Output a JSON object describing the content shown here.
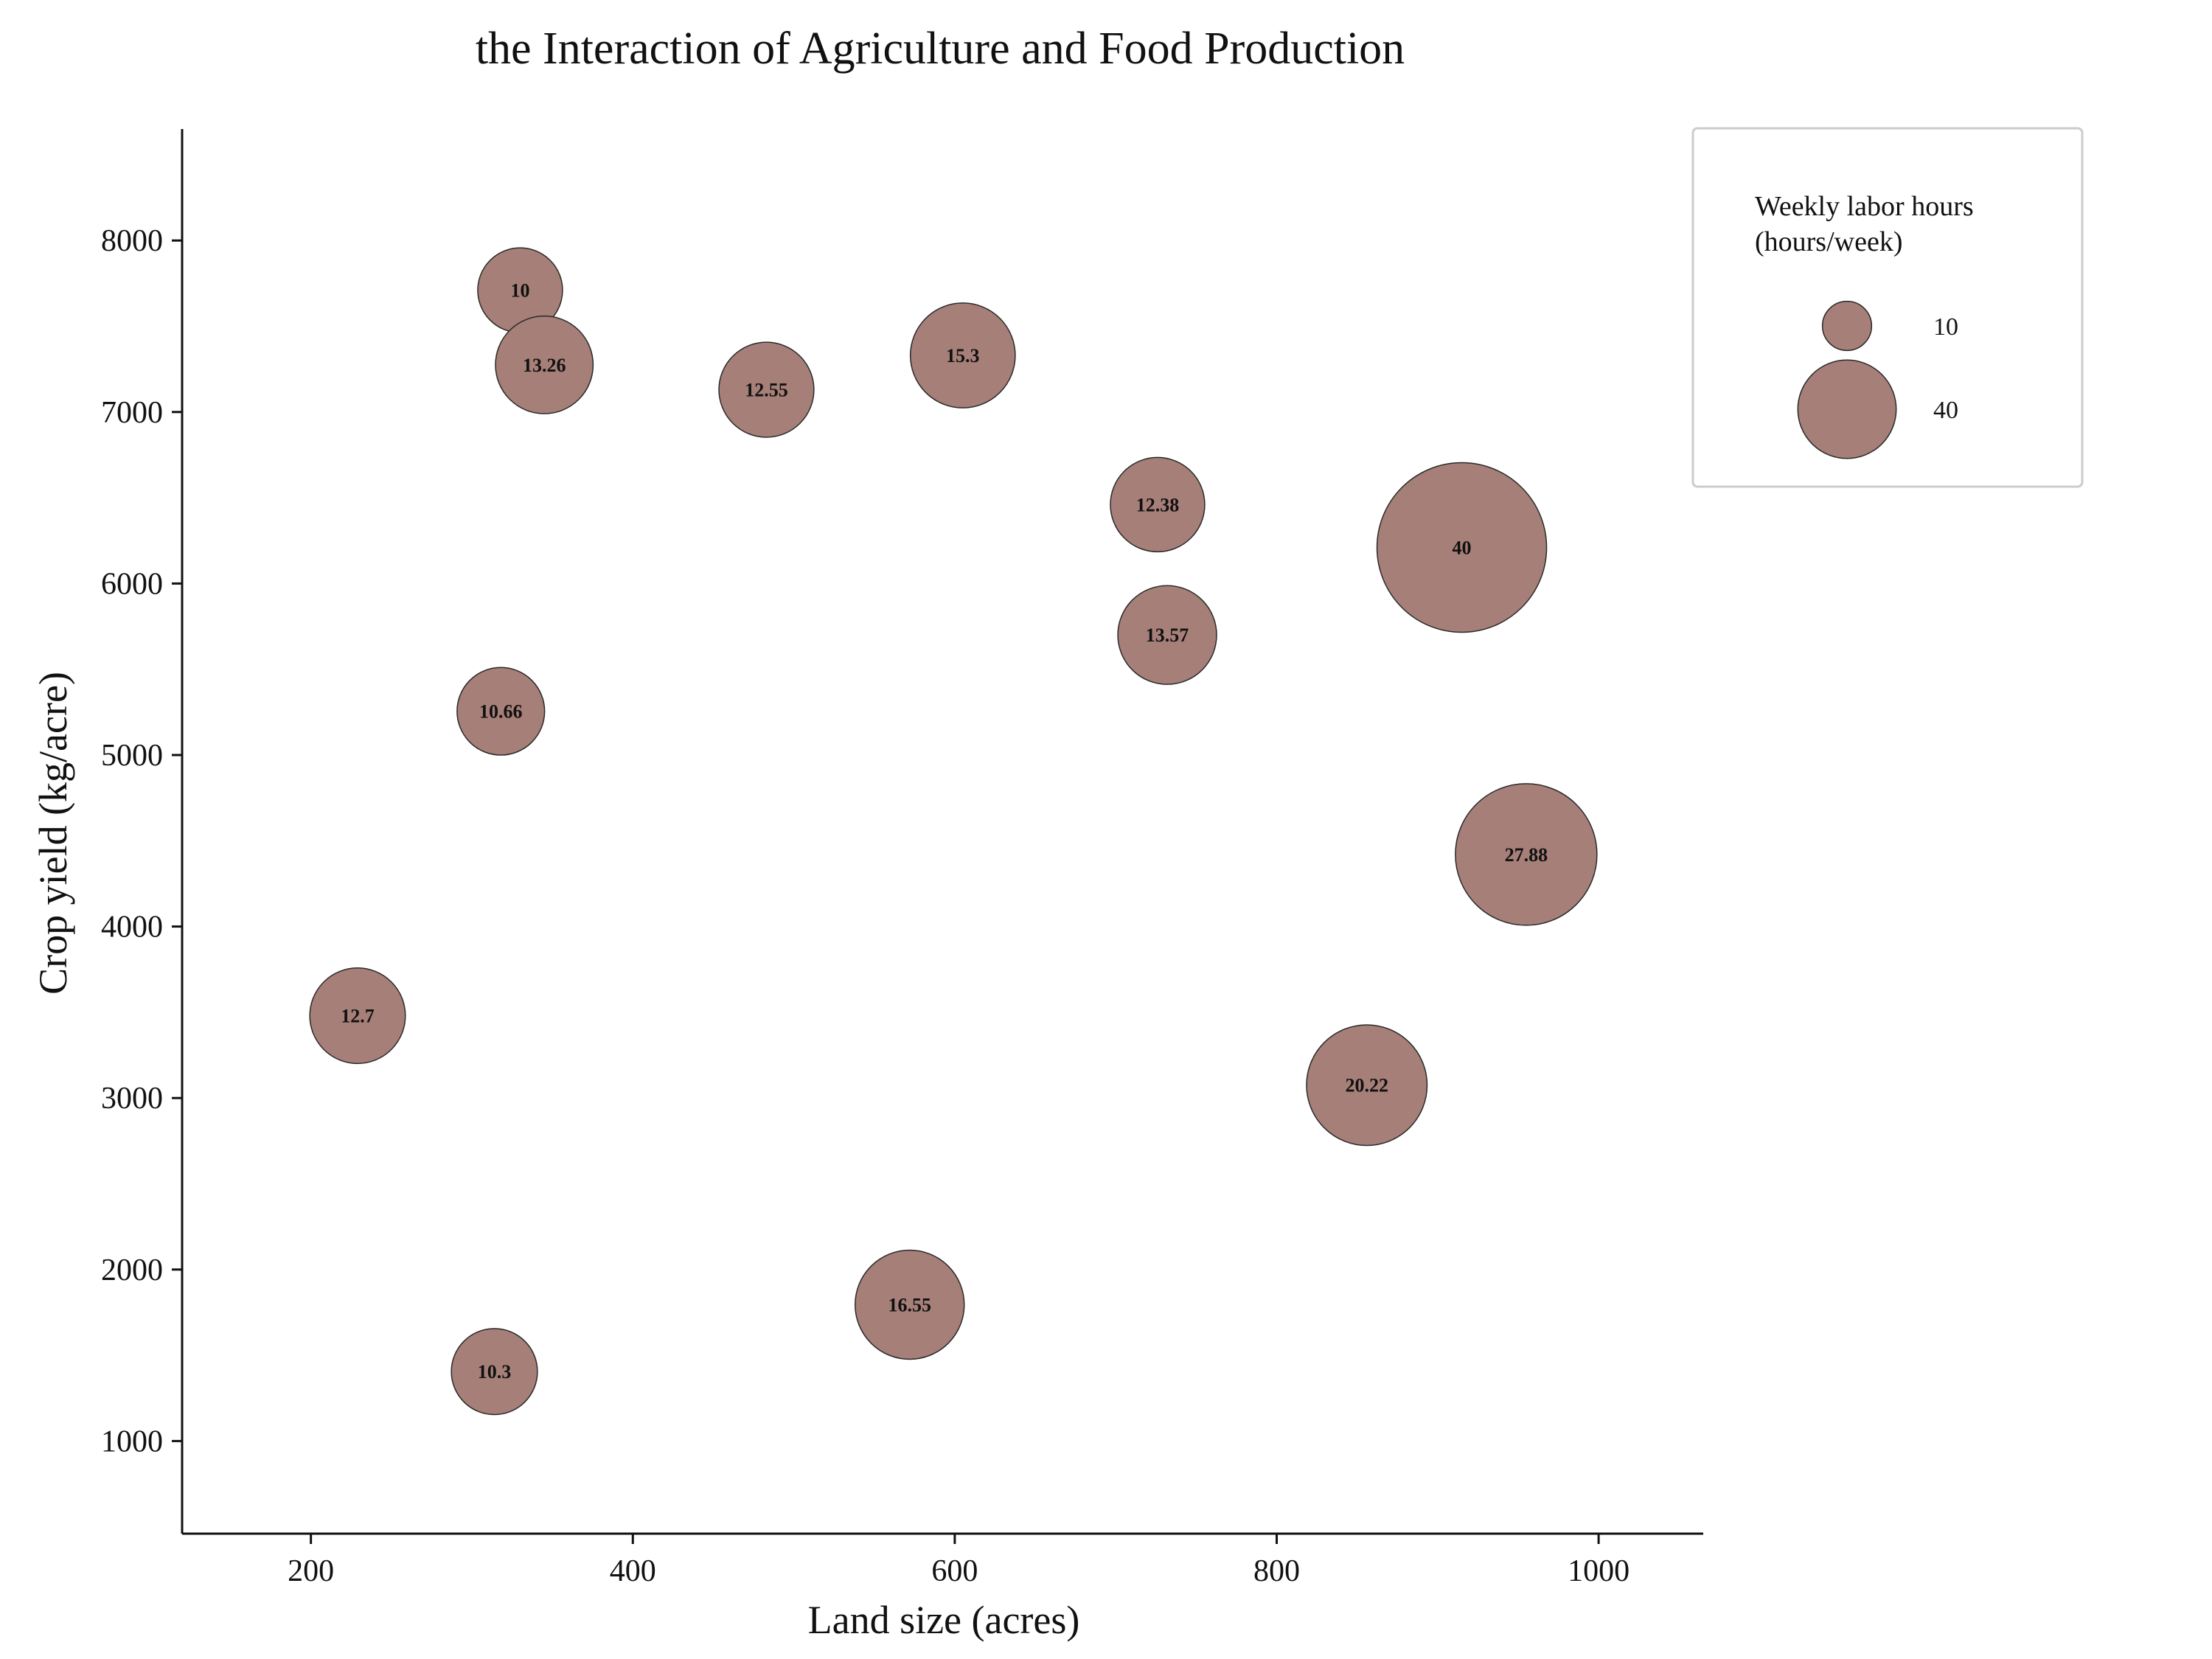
{
  "chart_data": {
    "type": "scatter",
    "title": "the Interaction of Agriculture and Food Production",
    "xlabel": "Land size (acres)",
    "ylabel": "Crop yield (kg/acre)",
    "xlim": [
      120,
      1065
    ],
    "ylim": [
      460,
      8650
    ],
    "xticks": [
      200,
      400,
      600,
      800,
      1000
    ],
    "yticks": [
      1000,
      2000,
      3000,
      4000,
      5000,
      6000,
      7000,
      8000
    ],
    "grid": false,
    "bubble_color": "#a67f78",
    "series": [
      {
        "points": [
          {
            "x": 330,
            "y": 7710,
            "size": 10,
            "label": "10"
          },
          {
            "x": 345,
            "y": 7275,
            "size": 13.26,
            "label": "13.26"
          },
          {
            "x": 483,
            "y": 7130,
            "size": 12.55,
            "label": "12.55"
          },
          {
            "x": 605,
            "y": 7330,
            "size": 15.3,
            "label": "15.3"
          },
          {
            "x": 726,
            "y": 6460,
            "size": 12.38,
            "label": "12.38"
          },
          {
            "x": 915,
            "y": 6210,
            "size": 40,
            "label": "40"
          },
          {
            "x": 732,
            "y": 5700,
            "size": 13.57,
            "label": "13.57"
          },
          {
            "x": 318,
            "y": 5255,
            "size": 10.66,
            "label": "10.66"
          },
          {
            "x": 955,
            "y": 4420,
            "size": 27.88,
            "label": "27.88"
          },
          {
            "x": 229,
            "y": 3480,
            "size": 12.7,
            "label": "12.7"
          },
          {
            "x": 856,
            "y": 3075,
            "size": 20.22,
            "label": "20.22"
          },
          {
            "x": 572,
            "y": 1795,
            "size": 16.55,
            "label": "16.55"
          },
          {
            "x": 314,
            "y": 1405,
            "size": 10.3,
            "label": "10.3"
          }
        ]
      }
    ],
    "legend": {
      "title_line1": "Weekly labor hours",
      "title_line2": "(hours/week)",
      "placement": "top-right",
      "entries": [
        {
          "size": 10,
          "label": "10"
        },
        {
          "size": 40,
          "label": "40"
        }
      ]
    }
  }
}
